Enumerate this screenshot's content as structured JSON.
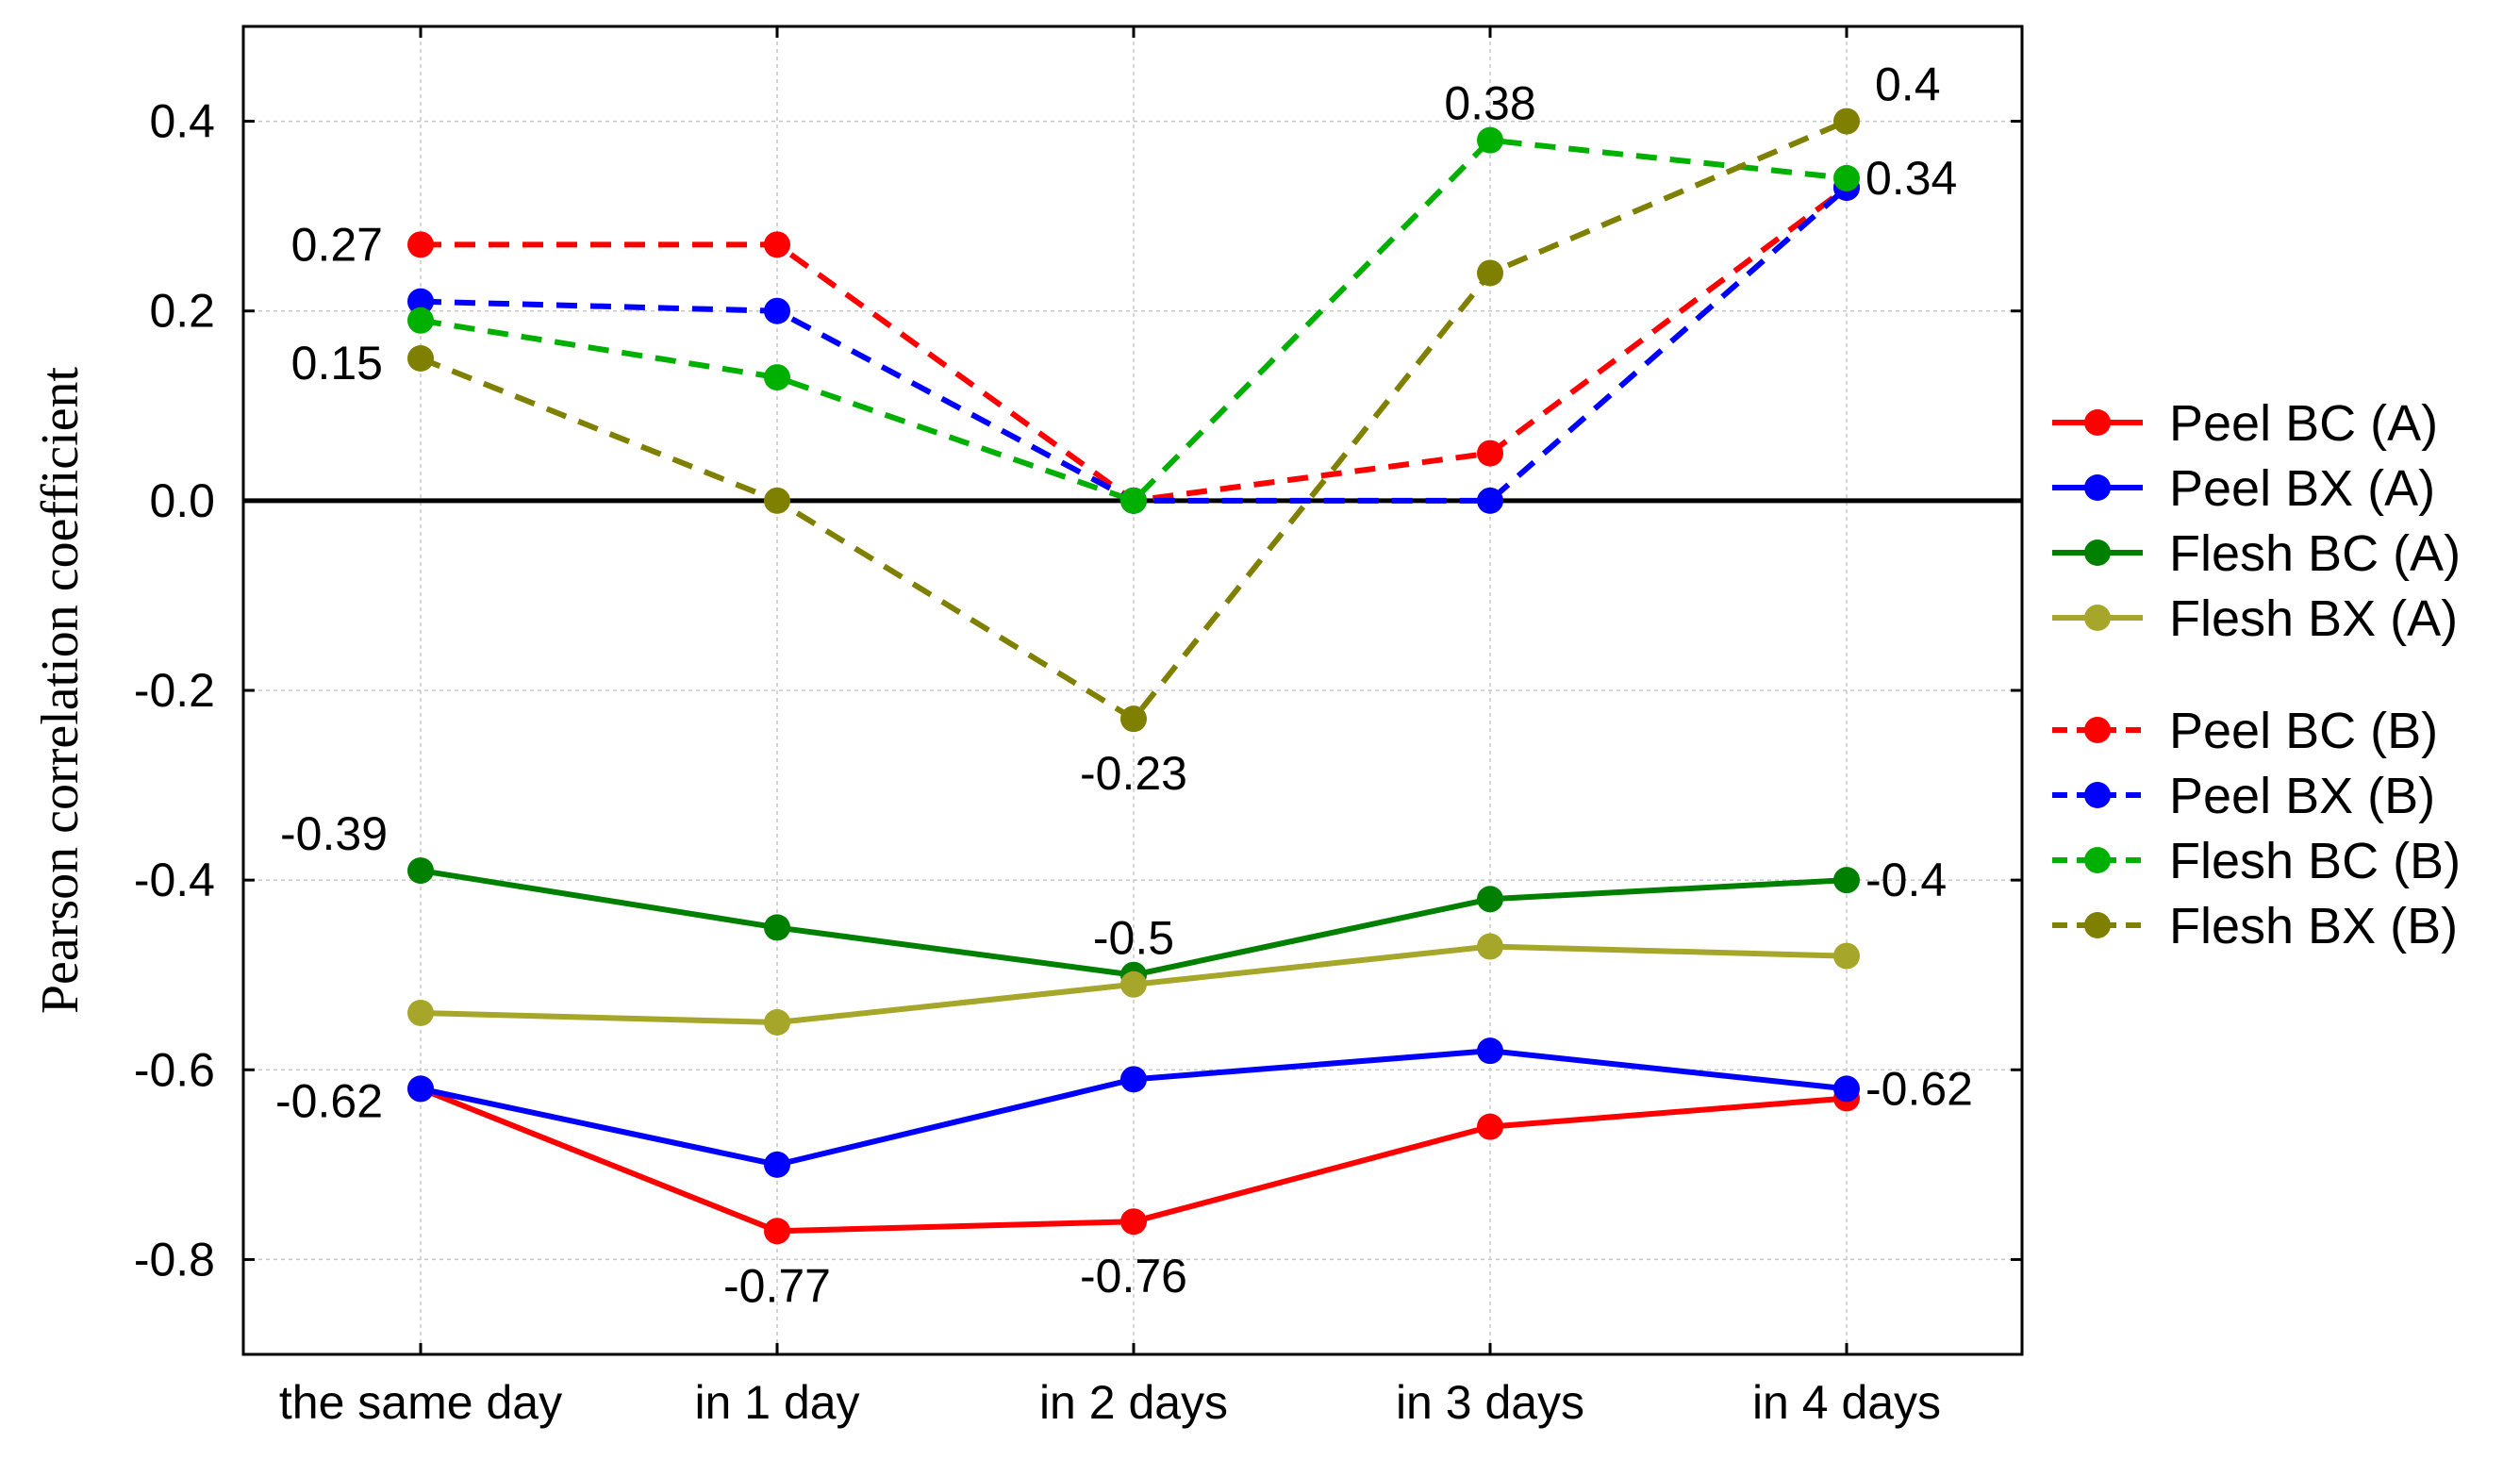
{
  "chart_data": {
    "type": "line",
    "title": "",
    "xlabel": "",
    "ylabel": "Pearson correlation coefficient",
    "ylim": [
      -0.9,
      0.5
    ],
    "yticks": [
      -0.8,
      -0.6,
      -0.4,
      -0.2,
      0.0,
      0.2,
      0.4
    ],
    "ytick_labels": [
      "-0.8",
      "-0.6",
      "-0.4",
      "-0.2",
      "0.0",
      "0.2",
      "0.4"
    ],
    "grid": true,
    "zero_line": true,
    "legend_position": "right",
    "categories": [
      "the same day",
      "in 1 day",
      "in 2 days",
      "in 3 days",
      "in 4 days"
    ],
    "series": [
      {
        "name": "Peel BC (A)",
        "color": "#ff0000",
        "style": "solid",
        "values": [
          -0.62,
          -0.77,
          -0.76,
          -0.66,
          -0.63
        ]
      },
      {
        "name": "Peel BX (A)",
        "color": "#0000ff",
        "style": "solid",
        "values": [
          -0.62,
          -0.7,
          -0.61,
          -0.58,
          -0.62
        ]
      },
      {
        "name": "Flesh BC (A)",
        "color": "#008000",
        "style": "solid",
        "values": [
          -0.39,
          -0.45,
          -0.5,
          -0.42,
          -0.4
        ]
      },
      {
        "name": "Flesh BX (A)",
        "color": "#a6a62a",
        "style": "solid",
        "values": [
          -0.54,
          -0.55,
          -0.51,
          -0.47,
          -0.48
        ]
      },
      {
        "name": "Peel BC (B)",
        "color": "#ff0000",
        "style": "dashed",
        "values": [
          0.27,
          0.27,
          0.0,
          0.05,
          0.33
        ]
      },
      {
        "name": "Peel BX (B)",
        "color": "#0000ff",
        "style": "dashed",
        "values": [
          0.21,
          0.2,
          0.0,
          0.0,
          0.33
        ]
      },
      {
        "name": "Flesh BC (B)",
        "color": "#00b000",
        "style": "dashed",
        "values": [
          0.19,
          0.13,
          0.0,
          0.38,
          0.34
        ]
      },
      {
        "name": "Flesh BX (B)",
        "color": "#808000",
        "style": "dashed",
        "values": [
          0.15,
          0.0,
          -0.23,
          0.24,
          0.4
        ]
      }
    ],
    "annotations": [
      {
        "text": "0.27",
        "x": 0,
        "y": 0.27,
        "anchor": "left"
      },
      {
        "text": "0.15",
        "x": 0,
        "y": 0.15,
        "anchor": "left-below"
      },
      {
        "text": "-0.39",
        "x": 0,
        "y": -0.39,
        "anchor": "above-left"
      },
      {
        "text": "-0.62",
        "x": 0,
        "y": -0.62,
        "anchor": "below-left"
      },
      {
        "text": "-0.77",
        "x": 1,
        "y": -0.77,
        "anchor": "below"
      },
      {
        "text": "-0.23",
        "x": 2,
        "y": -0.23,
        "anchor": "below"
      },
      {
        "text": "-0.5",
        "x": 2,
        "y": -0.5,
        "anchor": "above"
      },
      {
        "text": "-0.76",
        "x": 2,
        "y": -0.76,
        "anchor": "below"
      },
      {
        "text": "0.38",
        "x": 3,
        "y": 0.38,
        "anchor": "above"
      },
      {
        "text": "0.4",
        "x": 4,
        "y": 0.4,
        "anchor": "above-right"
      },
      {
        "text": "0.34",
        "x": 4,
        "y": 0.34,
        "anchor": "right"
      },
      {
        "text": "-0.4",
        "x": 4,
        "y": -0.4,
        "anchor": "right"
      },
      {
        "text": "-0.62",
        "x": 4,
        "y": -0.62,
        "anchor": "right"
      }
    ]
  }
}
